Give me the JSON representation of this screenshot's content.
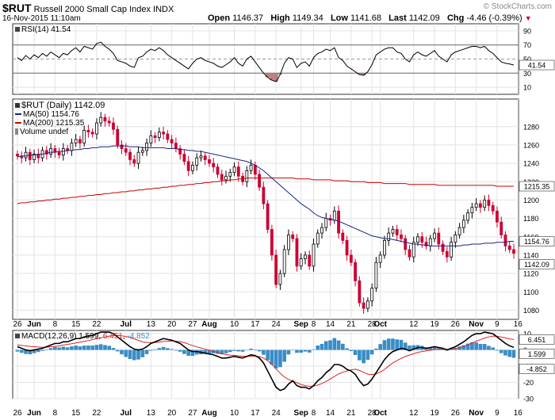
{
  "header": {
    "symbol": "$RUT",
    "name": "Russell 2000 Small Cap Index",
    "exchange": "INDX",
    "brand": "© StockCharts.com",
    "date": "16-Nov-2015 11:10am",
    "open_label": "Open",
    "open": "1146.37",
    "high_label": "High",
    "high": "1149.34",
    "low_label": "Low",
    "low": "1141.68",
    "last_label": "Last",
    "last": "1142.09",
    "chg_label": "Chg",
    "chg": "-4.46 (-0.39%)",
    "chg_arrow": "▼"
  },
  "rsi": {
    "legend": "RSI(14) 41.54",
    "last_tag": "41.54",
    "levels": [
      90,
      70,
      50,
      30,
      10
    ],
    "level_labels": [
      "90",
      "70",
      "50",
      "30",
      "10"
    ]
  },
  "price": {
    "legend_main": "$RUT (Daily) 1142.09",
    "legend_ma50": "MA(50) 1154.76",
    "legend_ma200": "MA(200) 1215.35",
    "legend_volume": "Volume undef",
    "tag_ma200": "1215.35",
    "tag_ma50": "1154.76",
    "tag_last": "1142.09"
  },
  "macd": {
    "legend_prefix": "MACD(12,26,9) ",
    "legend_macd": "1.599",
    "legend_signal": "6.451",
    "legend_hist": "-4.852",
    "tags": [
      "6.451",
      "1.599",
      "-4.852"
    ]
  },
  "xaxis": {
    "ticks": [
      {
        "label": "26",
        "i": 0
      },
      {
        "label": "Jun",
        "i": 4,
        "bold": true
      },
      {
        "label": "8",
        "i": 9
      },
      {
        "label": "15",
        "i": 14
      },
      {
        "label": "22",
        "i": 19
      },
      {
        "label": "Jul",
        "i": 26,
        "bold": true
      },
      {
        "label": "13",
        "i": 32
      },
      {
        "label": "20",
        "i": 37
      },
      {
        "label": "27",
        "i": 42
      },
      {
        "label": "Aug",
        "i": 46,
        "bold": true
      },
      {
        "label": "10",
        "i": 52
      },
      {
        "label": "17",
        "i": 57
      },
      {
        "label": "24",
        "i": 62
      },
      {
        "label": "Sep",
        "i": 68,
        "bold": true
      },
      {
        "label": "8",
        "i": 71
      },
      {
        "label": "14",
        "i": 75
      },
      {
        "label": "21",
        "i": 80
      },
      {
        "label": "28",
        "i": 85
      },
      {
        "label": "Oct",
        "i": 87,
        "bold": true
      },
      {
        "label": "12",
        "i": 95
      },
      {
        "label": "19",
        "i": 100
      },
      {
        "label": "26",
        "i": 105
      },
      {
        "label": "Nov",
        "i": 110,
        "bold": true
      },
      {
        "label": "9",
        "i": 115
      },
      {
        "label": "16",
        "i": 120
      }
    ]
  },
  "colors": {
    "up": "#000000",
    "down": "#cc0033",
    "ma50": "#1a237e",
    "ma200": "#cc0000",
    "hist": "#3a8dc6",
    "signal": "#dd2222",
    "grid": "#e3e3e3",
    "rsi_fill": "#c08080"
  },
  "chart_data": [
    {
      "type": "candlestick",
      "title": "Russell 2000 Small Cap Index (Daily)",
      "x_start": "26-May-2015",
      "x_end": "16-Nov-2015",
      "ylim": [
        1070,
        1310
      ],
      "y_ticks": [
        1080,
        1100,
        1120,
        1140,
        1160,
        1180,
        1200,
        1220,
        1240,
        1260,
        1280
      ],
      "close": [
        1248,
        1246,
        1252,
        1244,
        1250,
        1246,
        1254,
        1250,
        1256,
        1252,
        1249,
        1256,
        1254,
        1262,
        1266,
        1262,
        1276,
        1274,
        1272,
        1284,
        1290,
        1286,
        1284,
        1277,
        1260,
        1256,
        1252,
        1244,
        1240,
        1252,
        1254,
        1262,
        1270,
        1268,
        1274,
        1272,
        1266,
        1262,
        1256,
        1250,
        1242,
        1232,
        1238,
        1246,
        1248,
        1244,
        1240,
        1236,
        1228,
        1222,
        1226,
        1230,
        1236,
        1226,
        1220,
        1232,
        1238,
        1228,
        1214,
        1196,
        1168,
        1140,
        1108,
        1120,
        1146,
        1162,
        1158,
        1128,
        1136,
        1140,
        1128,
        1152,
        1164,
        1170,
        1180,
        1178,
        1188,
        1164,
        1156,
        1140,
        1132,
        1112,
        1088,
        1082,
        1090,
        1104,
        1132,
        1140,
        1156,
        1164,
        1168,
        1162,
        1158,
        1146,
        1138,
        1154,
        1160,
        1154,
        1150,
        1158,
        1164,
        1152,
        1144,
        1138,
        1154,
        1162,
        1170,
        1178,
        1186,
        1192,
        1196,
        1192,
        1200,
        1194,
        1188,
        1176,
        1162,
        1150,
        1146,
        1142
      ],
      "ma50": [
        1247,
        1248,
        1248,
        1249,
        1249,
        1250,
        1250,
        1251,
        1252,
        1252,
        1253,
        1253,
        1254,
        1254,
        1255,
        1255,
        1256,
        1256,
        1257,
        1257,
        1258,
        1258,
        1258,
        1259,
        1259,
        1259,
        1259,
        1258,
        1258,
        1258,
        1257,
        1257,
        1257,
        1257,
        1257,
        1257,
        1256,
        1256,
        1256,
        1255,
        1255,
        1254,
        1254,
        1253,
        1253,
        1252,
        1251,
        1250,
        1249,
        1248,
        1247,
        1246,
        1245,
        1244,
        1243,
        1242,
        1240,
        1238,
        1235,
        1232,
        1228,
        1224,
        1220,
        1216,
        1212,
        1208,
        1204,
        1200,
        1196,
        1193,
        1190,
        1186,
        1183,
        1181,
        1180,
        1179,
        1178,
        1177,
        1175,
        1173,
        1171,
        1169,
        1167,
        1165,
        1163,
        1161,
        1160,
        1159,
        1158,
        1158,
        1157,
        1156,
        1155,
        1154,
        1153,
        1152,
        1152,
        1151,
        1151,
        1150,
        1150,
        1150,
        1150,
        1150,
        1150,
        1150,
        1150,
        1151,
        1151,
        1152,
        1152,
        1152,
        1153,
        1153,
        1153,
        1154,
        1154,
        1154,
        1155,
        1155
      ],
      "ma200": [
        1196,
        1197,
        1197,
        1198,
        1198,
        1199,
        1199,
        1200,
        1200,
        1201,
        1201,
        1202,
        1202,
        1203,
        1203,
        1204,
        1204,
        1205,
        1205,
        1206,
        1206,
        1207,
        1207,
        1208,
        1208,
        1209,
        1209,
        1210,
        1210,
        1211,
        1211,
        1212,
        1212,
        1213,
        1213,
        1214,
        1214,
        1215,
        1215,
        1216,
        1216,
        1217,
        1217,
        1218,
        1218,
        1219,
        1219,
        1220,
        1220,
        1221,
        1221,
        1222,
        1222,
        1223,
        1223,
        1224,
        1224,
        1224,
        1224,
        1224,
        1224,
        1224,
        1224,
        1224,
        1224,
        1224,
        1224,
        1223,
        1223,
        1223,
        1223,
        1222,
        1222,
        1222,
        1222,
        1222,
        1221,
        1221,
        1221,
        1221,
        1220,
        1220,
        1220,
        1220,
        1219,
        1219,
        1219,
        1219,
        1218,
        1218,
        1218,
        1218,
        1218,
        1218,
        1217,
        1217,
        1217,
        1217,
        1217,
        1217,
        1217,
        1216,
        1216,
        1216,
        1216,
        1216,
        1216,
        1216,
        1216,
        1216,
        1216,
        1216,
        1216,
        1216,
        1216,
        1215,
        1215,
        1215,
        1215,
        1215
      ]
    },
    {
      "type": "line",
      "title": "RSI(14)",
      "ylim": [
        0,
        100
      ],
      "values": [
        52,
        48,
        55,
        50,
        56,
        52,
        58,
        54,
        60,
        56,
        52,
        58,
        56,
        62,
        66,
        60,
        68,
        66,
        64,
        72,
        74,
        68,
        64,
        58,
        48,
        46,
        44,
        40,
        38,
        52,
        54,
        60,
        64,
        62,
        66,
        62,
        56,
        52,
        48,
        44,
        40,
        36,
        44,
        50,
        52,
        48,
        46,
        44,
        40,
        38,
        42,
        46,
        52,
        44,
        40,
        50,
        54,
        46,
        38,
        30,
        24,
        20,
        18,
        28,
        44,
        52,
        50,
        38,
        44,
        46,
        40,
        52,
        58,
        60,
        64,
        62,
        66,
        52,
        48,
        40,
        36,
        32,
        28,
        27,
        32,
        42,
        56,
        60,
        64,
        66,
        66,
        60,
        58,
        50,
        46,
        56,
        60,
        56,
        54,
        58,
        62,
        54,
        50,
        46,
        56,
        60,
        62,
        64,
        66,
        68,
        68,
        66,
        68,
        62,
        58,
        52,
        46,
        44,
        43,
        41.54
      ]
    },
    {
      "type": "line",
      "title": "MACD(12,26,9)",
      "ylim": [
        -30,
        12
      ],
      "y_ticks": [
        -30,
        -20,
        -10,
        0,
        10
      ],
      "macd": [
        2,
        1,
        0,
        -0.5,
        0,
        0.5,
        1,
        2,
        3,
        4,
        4,
        5,
        5,
        6,
        7,
        7,
        8,
        8.5,
        9,
        10,
        11,
        11,
        11,
        10,
        8,
        6,
        4,
        2,
        0.5,
        0,
        0.5,
        2,
        4,
        5,
        6,
        7,
        6.5,
        6,
        5,
        4,
        2,
        0,
        -1,
        -1,
        -1.5,
        -2,
        -2.5,
        -3,
        -4,
        -5,
        -5,
        -4.5,
        -4,
        -4.5,
        -5,
        -4,
        -3,
        -3.5,
        -5,
        -8,
        -13,
        -18,
        -23,
        -25,
        -24,
        -21,
        -19,
        -22,
        -23,
        -23,
        -24,
        -22,
        -19,
        -17,
        -14,
        -12,
        -9,
        -9,
        -10,
        -12,
        -13,
        -15,
        -19,
        -22,
        -21,
        -18,
        -14,
        -10,
        -6,
        -3,
        -1,
        0,
        1,
        0.5,
        -0.5,
        0.5,
        1.5,
        1.5,
        1,
        1.5,
        2,
        1.5,
        1,
        0,
        1,
        2,
        3.5,
        5,
        7,
        9,
        10,
        10,
        11,
        10.5,
        10,
        8,
        6,
        4,
        2.5,
        1.599
      ],
      "signal": [
        3,
        2.8,
        2.5,
        2.2,
        2,
        1.8,
        1.6,
        1.7,
        1.9,
        2.2,
        2.5,
        3,
        3.4,
        3.8,
        4.3,
        4.8,
        5.3,
        5.8,
        6.3,
        6.9,
        7.5,
        8,
        8.5,
        8.8,
        8.9,
        8.7,
        8.3,
        7.6,
        6.8,
        5.9,
        5,
        4.6,
        4.5,
        4.6,
        4.8,
        5.2,
        5.4,
        5.5,
        5.4,
        5.1,
        4.5,
        3.6,
        2.7,
        1.9,
        1.2,
        0.5,
        -0.2,
        -0.9,
        -1.6,
        -2.3,
        -2.9,
        -3.2,
        -3.4,
        -3.6,
        -3.9,
        -4,
        -3.8,
        -3.8,
        -4.1,
        -5,
        -6.7,
        -8.9,
        -11.6,
        -14.4,
        -16.7,
        -18.2,
        -19.2,
        -20.2,
        -21.3,
        -22,
        -22.4,
        -22.3,
        -21.7,
        -20.7,
        -19.4,
        -17.9,
        -16.3,
        -14.8,
        -13.8,
        -13,
        -12.3,
        -11.9,
        -12.6,
        -13.8,
        -14.9,
        -15.2,
        -14.8,
        -13.6,
        -12,
        -10,
        -8,
        -6.5,
        -5.2,
        -4,
        -3.2,
        -2.4,
        -1.5,
        -1,
        -0.6,
        -0.2,
        0.2,
        0.4,
        0.5,
        0.4,
        0.6,
        0.8,
        1.4,
        2.1,
        3.1,
        4.3,
        5.4,
        6.3,
        7.3,
        8,
        8.5,
        8.4,
        8,
        7.4,
        6.8,
        6.451
      ]
    }
  ]
}
